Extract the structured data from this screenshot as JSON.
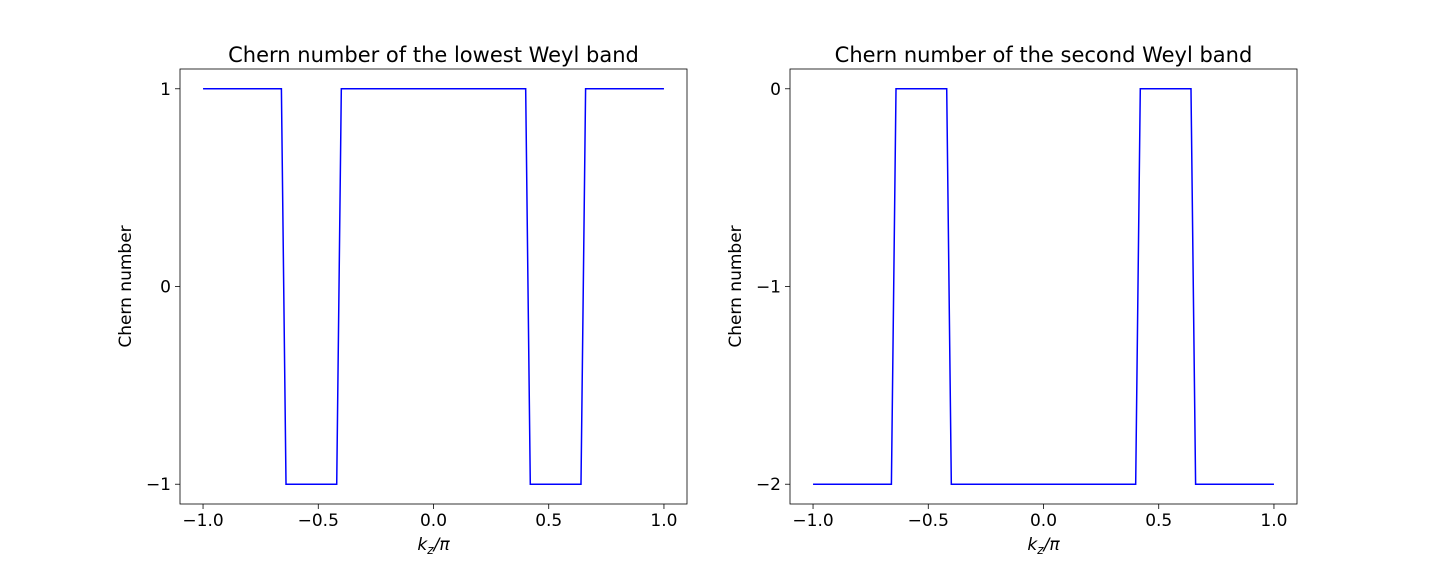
{
  "chart_data": [
    {
      "type": "line",
      "title": "Chern number of the lowest Weyl band",
      "xlabel": "k_z/π",
      "ylabel": "Chern number",
      "xlim": [
        -1.1,
        1.1
      ],
      "ylim": [
        -1.1,
        1.1
      ],
      "xticks": [
        -1.0,
        -0.5,
        0.0,
        0.5,
        1.0
      ],
      "xtick_labels": [
        "−1.0",
        "−0.5",
        "0.0",
        "0.5",
        "1.0"
      ],
      "yticks": [
        -1,
        0,
        1
      ],
      "ytick_labels": [
        "−1",
        "0",
        "1"
      ],
      "grid": false,
      "series": [
        {
          "color": "#0000ff",
          "x": [
            -1.0,
            -0.66,
            -0.64,
            -0.42,
            -0.4,
            0.4,
            0.42,
            0.64,
            0.66,
            1.0
          ],
          "y": [
            1,
            1,
            -1,
            -1,
            1,
            1,
            -1,
            -1,
            1,
            1
          ]
        }
      ]
    },
    {
      "type": "line",
      "title": "Chern number of the second Weyl band",
      "xlabel": "k_z/π",
      "ylabel": "Chern number",
      "xlim": [
        -1.1,
        1.1
      ],
      "ylim": [
        -2.1,
        0.1
      ],
      "xticks": [
        -1.0,
        -0.5,
        0.0,
        0.5,
        1.0
      ],
      "xtick_labels": [
        "−1.0",
        "−0.5",
        "0.0",
        "0.5",
        "1.0"
      ],
      "yticks": [
        -2,
        -1,
        0
      ],
      "ytick_labels": [
        "−2",
        "−1",
        "0"
      ],
      "grid": false,
      "series": [
        {
          "color": "#0000ff",
          "x": [
            -1.0,
            -0.66,
            -0.64,
            -0.42,
            -0.4,
            0.4,
            0.42,
            0.64,
            0.66,
            1.0
          ],
          "y": [
            -2,
            -2,
            0,
            0,
            -2,
            -2,
            0,
            0,
            -2,
            -2
          ]
        }
      ]
    }
  ]
}
